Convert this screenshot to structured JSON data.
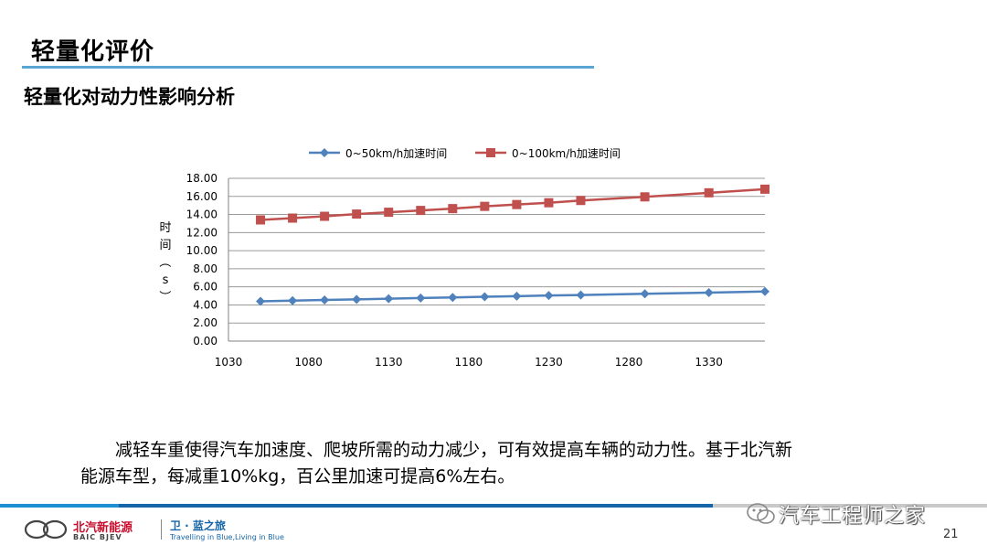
{
  "slide": {
    "title": "轻量化评价",
    "subtitle": "轻量化对动力性影响分析",
    "paragraph_line1": "减轻车重使得汽车加速度、爬坡所需的动力减少，可有效提高车辆的动力性。基于北汽新",
    "paragraph_line2": "能源车型，每减重10%kg，百公里加速可提高6%左右。",
    "page_number": "21"
  },
  "footer": {
    "brand_cn": "北汽新能源",
    "brand_en": "BAIC BJEV",
    "slogan_cn": "卫 · 蓝之旅",
    "slogan_en": "Travelling in Blue,Living in Blue",
    "watermark": "汽车工程师之家",
    "colors": {
      "blue": "#1e8fd2",
      "dark_blue": "#1565a8",
      "red": "#c8102e"
    }
  },
  "chart_data": {
    "type": "line",
    "title": "",
    "xlabel": "",
    "ylabel": "时间（s）",
    "xlim": [
      1030,
      1365
    ],
    "ylim": [
      0,
      18
    ],
    "x_ticks": [
      "1030",
      "1080",
      "1130",
      "1180",
      "1230",
      "1280",
      "1330"
    ],
    "y_ticks": [
      "0.00",
      "2.00",
      "4.00",
      "6.00",
      "8.00",
      "10.00",
      "12.00",
      "14.00",
      "16.00",
      "18.00"
    ],
    "grid": true,
    "legend_position": "top",
    "x": [
      1050,
      1070,
      1090,
      1110,
      1130,
      1150,
      1170,
      1190,
      1210,
      1230,
      1250,
      1290,
      1330,
      1365
    ],
    "series": [
      {
        "name": "0~50km/h加速时间",
        "color": "#4f81bd",
        "marker": "diamond",
        "values": [
          4.4,
          4.48,
          4.55,
          4.62,
          4.69,
          4.76,
          4.83,
          4.9,
          4.97,
          5.04,
          5.1,
          5.23,
          5.36,
          5.48
        ]
      },
      {
        "name": "0~100km/h加速时间",
        "color": "#c0504d",
        "marker": "square",
        "values": [
          13.4,
          13.6,
          13.8,
          14.05,
          14.25,
          14.45,
          14.65,
          14.9,
          15.1,
          15.3,
          15.55,
          15.95,
          16.4,
          16.8
        ]
      }
    ]
  }
}
